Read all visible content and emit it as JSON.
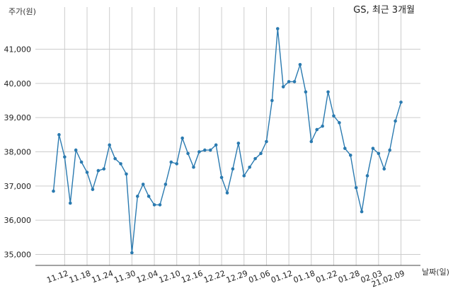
{
  "chart_data": {
    "type": "line",
    "title": "GS, 최근 3개월",
    "ylabel": "주가(원)",
    "xlabel": "날짜(일)",
    "ylim": [
      34700,
      41800
    ],
    "yticks": [
      35000,
      36000,
      37000,
      38000,
      39000,
      40000,
      41000
    ],
    "ytick_labels": [
      "35,000",
      "36,000",
      "37,000",
      "38,000",
      "39,000",
      "40,000",
      "41,000"
    ],
    "xticks": [
      {
        "label": "11.12",
        "index": 2
      },
      {
        "label": "11.18",
        "index": 6
      },
      {
        "label": "11.24",
        "index": 10
      },
      {
        "label": "11.30",
        "index": 14
      },
      {
        "label": "12.04",
        "index": 18
      },
      {
        "label": "12.10",
        "index": 22
      },
      {
        "label": "12.16",
        "index": 26
      },
      {
        "label": "12.22",
        "index": 30
      },
      {
        "label": "12.29",
        "index": 34
      },
      {
        "label": "01.06",
        "index": 38
      },
      {
        "label": "01.12",
        "index": 42
      },
      {
        "label": "01.18",
        "index": 46
      },
      {
        "label": "01.22",
        "index": 50
      },
      {
        "label": "01.28",
        "index": 54
      },
      {
        "label": "02.03",
        "index": 58
      },
      {
        "label": "21.02.09",
        "index": 62
      }
    ],
    "grid": true,
    "color": "#2a7ab0",
    "values": [
      36850,
      38500,
      37850,
      36500,
      38050,
      37700,
      37400,
      36900,
      37450,
      37500,
      38200,
      37800,
      37650,
      37350,
      35050,
      36700,
      37050,
      36700,
      36450,
      36450,
      37050,
      37700,
      37650,
      38400,
      37950,
      37550,
      38000,
      38050,
      38050,
      38200,
      37250,
      36800,
      37500,
      38250,
      37300,
      37550,
      37800,
      37950,
      38300,
      39500,
      41600,
      39900,
      40050,
      40050,
      40550,
      39750,
      38300,
      38650,
      38750,
      39750,
      39050,
      38850,
      38100,
      37900,
      36950,
      36250,
      37300,
      38100,
      37950,
      37500,
      38050,
      38900,
      39450
    ]
  }
}
